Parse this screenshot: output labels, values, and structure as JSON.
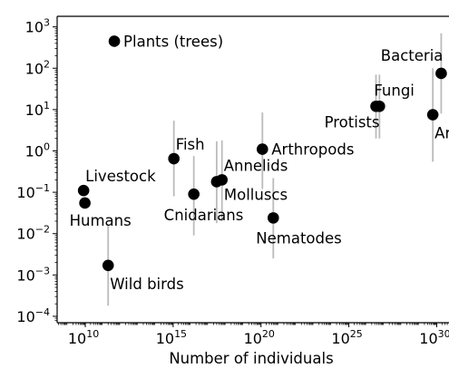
{
  "chart_data": {
    "type": "scatter",
    "title": "",
    "xlabel": "Number of individuals",
    "ylabel": "",
    "x_scale": "log",
    "y_scale": "log",
    "xlim": [
      250000000.0,
      5e+30
    ],
    "ylim": [
      7e-05,
      1800.0
    ],
    "x_ticks": [
      {
        "value": 10000000000.0,
        "base": "10",
        "exp": "10"
      },
      {
        "value": 1000000000000000.0,
        "base": "10",
        "exp": "15"
      },
      {
        "value": 1e+20,
        "base": "10",
        "exp": "20"
      },
      {
        "value": 1e+25,
        "base": "10",
        "exp": "25"
      },
      {
        "value": 1e+30,
        "base": "10",
        "exp": "30"
      }
    ],
    "y_ticks": [
      {
        "value": 1000.0,
        "base": "10",
        "exp": "3"
      },
      {
        "value": 100.0,
        "base": "10",
        "exp": "2"
      },
      {
        "value": 10.0,
        "base": "10",
        "exp": "1"
      },
      {
        "value": 1.0,
        "base": "10",
        "exp": "0"
      },
      {
        "value": 0.1,
        "base": "10",
        "exp": "−1"
      },
      {
        "value": 0.01,
        "base": "10",
        "exp": "−2"
      },
      {
        "value": 0.001,
        "base": "10",
        "exp": "−3"
      },
      {
        "value": 0.0001,
        "base": "10",
        "exp": "−4"
      }
    ],
    "grid": false,
    "point_color": "#000000",
    "errorbar_color": "#bbbbbb",
    "points": [
      {
        "label": "Plants (trees)",
        "x": 450000000000.0,
        "y": 450,
        "err": null,
        "label_pos": "right"
      },
      {
        "label": "Livestock",
        "x": 8000000000.0,
        "y": 0.11,
        "err": null,
        "label_pos": "upper-right"
      },
      {
        "label": "Humans",
        "x": 9500000000.0,
        "y": 0.055,
        "err": null,
        "label_pos": "below"
      },
      {
        "label": "Wild birds",
        "x": 200000000000.0,
        "y": 0.0017,
        "err": [
          0.00018,
          0.016
        ],
        "label_pos": "below-right"
      },
      {
        "label": "Fish",
        "x": 1100000000000000.0,
        "y": 0.65,
        "err": [
          0.08,
          5.4
        ],
        "label_pos": "upper-right"
      },
      {
        "label": "Cnidarians",
        "x": 1.5e+16,
        "y": 0.09,
        "err": [
          0.009,
          0.75
        ],
        "label_pos": "below"
      },
      {
        "label": "Molluscs",
        "x": 3e+17,
        "y": 0.18,
        "err": [
          0.018,
          1.7
        ],
        "label_pos": "right"
      },
      {
        "label": "Annelids",
        "x": 6e+17,
        "y": 0.2,
        "err": [
          0.02,
          1.8
        ],
        "label_pos": "upper-right"
      },
      {
        "label": "Arthropods",
        "x": 1.2e+20,
        "y": 1.1,
        "err": [
          0.12,
          8.5
        ],
        "label_pos": "right"
      },
      {
        "label": "Nematodes",
        "x": 5e+20,
        "y": 0.024,
        "err": [
          0.0025,
          0.22
        ],
        "label_pos": "below"
      },
      {
        "label": "Protists",
        "x": 3.5e+26,
        "y": 12,
        "err": [
          2,
          70
        ],
        "label_pos": "below-left"
      },
      {
        "label": "Fungi",
        "x": 5.5e+26,
        "y": 12,
        "err": [
          2,
          70
        ],
        "label_pos": "above"
      },
      {
        "label": "Archaea",
        "x": 6e+29,
        "y": 7.5,
        "err": [
          0.55,
          100
        ],
        "label_pos": "below-right"
      },
      {
        "label": "Bacteria",
        "x": 1.8e+30,
        "y": 75,
        "err": [
          8,
          700
        ],
        "label_pos": "upper-left"
      }
    ]
  }
}
